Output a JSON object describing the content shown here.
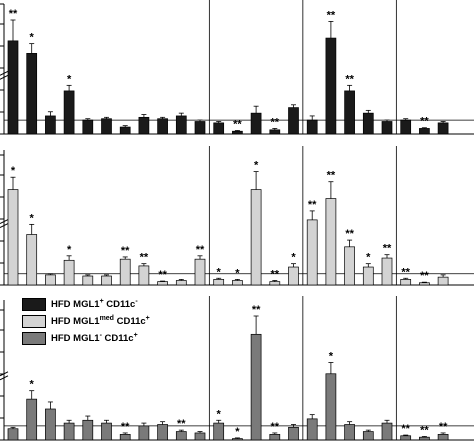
{
  "chart_data": {
    "type": "bar",
    "panels": [
      {
        "series": "HFD MGL1+ CD11c-",
        "color": "#1a1a1a",
        "baseline": 1,
        "values": [
          6.7,
          5.8,
          1.3,
          3.1,
          1.0,
          1.1,
          0.5,
          1.2,
          1.1,
          1.3,
          0.9,
          0.8,
          0.2,
          1.5,
          0.3,
          1.9,
          1.0,
          6.9,
          3.1,
          1.5,
          0.9,
          1.0,
          0.4,
          0.8
        ],
        "errors": [
          1.5,
          0.7,
          0.3,
          0.4,
          0.1,
          0.1,
          0.1,
          0.2,
          0.1,
          0.2,
          0.1,
          0.1,
          0.05,
          0.5,
          0.1,
          0.2,
          0.3,
          1.2,
          0.4,
          0.2,
          0.1,
          0.1,
          0.05,
          0.1
        ],
        "marks": [
          "**",
          "*",
          "",
          "*",
          "",
          "",
          "",
          "",
          "",
          "",
          "",
          "",
          "**",
          "",
          "**",
          "",
          "",
          "**",
          "**",
          "",
          "",
          "",
          "**",
          ""
        ]
      },
      {
        "series": "HFD MGL1med CD11c+",
        "color": "#d3d3d3",
        "baseline": 1,
        "values": [
          8.5,
          4.5,
          0.9,
          2.2,
          0.8,
          0.8,
          2.3,
          1.7,
          0.3,
          0.4,
          2.3,
          0.5,
          0.4,
          8.5,
          0.3,
          1.6,
          5.8,
          7.7,
          3.4,
          1.6,
          2.4,
          0.5,
          0.2,
          0.7
        ],
        "errors": [
          1.1,
          0.9,
          0.1,
          0.4,
          0.1,
          0.1,
          0.2,
          0.2,
          0.05,
          0.1,
          0.3,
          0.1,
          0.1,
          1.6,
          0.1,
          0.3,
          0.8,
          1.5,
          0.6,
          0.3,
          0.3,
          0.1,
          0.05,
          0.2
        ],
        "marks": [
          "*",
          "*",
          "",
          "*",
          "",
          "",
          "**",
          "**",
          "**",
          "",
          "**",
          "*",
          "*",
          "*",
          "**",
          "*",
          "**",
          "**",
          "**",
          "*",
          "**",
          "**",
          "**",
          ""
        ]
      },
      {
        "series": "HFD MGL1- CD11c+",
        "color": "#7a7a7a",
        "baseline": 1,
        "values": [
          0.8,
          2.9,
          2.2,
          1.2,
          1.4,
          1.2,
          0.4,
          1.0,
          1.1,
          0.6,
          0.5,
          1.2,
          0.1,
          7.5,
          0.4,
          0.9,
          1.5,
          4.7,
          1.1,
          0.6,
          1.2,
          0.3,
          0.2,
          0.4
        ],
        "errors": [
          0.1,
          0.6,
          0.5,
          0.2,
          0.3,
          0.2,
          0.1,
          0.2,
          0.2,
          0.1,
          0.1,
          0.2,
          0.05,
          1.3,
          0.1,
          0.2,
          0.3,
          0.8,
          0.2,
          0.1,
          0.2,
          0.05,
          0.05,
          0.1
        ],
        "marks": [
          "",
          "*",
          "",
          "",
          "",
          "",
          "**",
          "",
          "",
          "**",
          "",
          "*",
          "*",
          "**",
          "**",
          "",
          "",
          "*",
          "",
          "",
          "",
          "**",
          "**",
          "**"
        ]
      }
    ],
    "legend": [
      {
        "label": "HFD MGL1",
        "sup": "+",
        "rest": " CD11c",
        "sup2": "-",
        "color": "#1a1a1a"
      },
      {
        "label": "HFD MGL1",
        "sup": "med",
        "rest": " CD11c",
        "sup2": "+",
        "color": "#d3d3d3"
      },
      {
        "label": "HFD MGL1",
        "sup": "-",
        "rest": " CD11c",
        "sup2": "+",
        "color": "#7a7a7a"
      }
    ],
    "group_boundaries_after": [
      10,
      15,
      20
    ],
    "axis_breaks": true,
    "legend_position": "top-left of bottom panel"
  }
}
